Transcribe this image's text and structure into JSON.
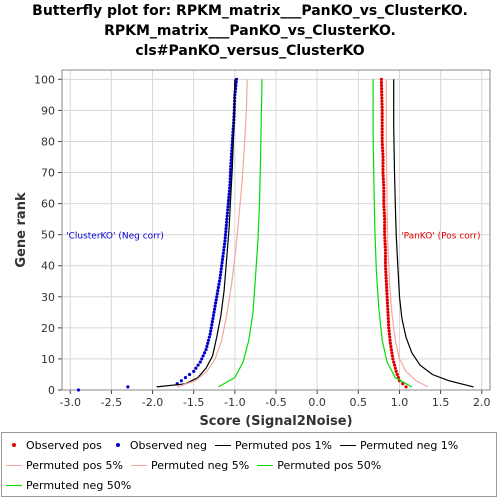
{
  "header": {
    "title_line1": "Butterfly plot for: RPKM_matrix___PanKO_vs_ClusterKO.",
    "title_line2": "RPKM_matrix___PanKO_vs_ClusterKO.",
    "title_line3": "cls#PanKO_versus_ClusterKO"
  },
  "chart_data": {
    "type": "line",
    "title": "Butterfly plot for: RPKM_matrix___PanKO_vs_ClusterKO. RPKM_matrix___PanKO_vs_ClusterKO. cls#PanKO_versus_ClusterKO",
    "xlabel": "Score (Signal2Noise)",
    "ylabel": "Gene rank",
    "xlim": [
      -3.1,
      2.1
    ],
    "ylim": [
      0,
      103
    ],
    "xticks": [
      "-3.0",
      "-2.5",
      "-2.0",
      "-1.5",
      "-1.0",
      "-0.5",
      "0.0",
      "0.5",
      "1.0",
      "1.5",
      "2.0"
    ],
    "yticks": [
      "0",
      "10",
      "20",
      "30",
      "40",
      "50",
      "60",
      "70",
      "80",
      "90",
      "100"
    ],
    "grid": true,
    "annotations": {
      "neg": "'ClusterKO' (Neg corr)",
      "pos": "'PanKO' (Pos corr)"
    },
    "colors": {
      "observed_pos": "#e00000",
      "observed_neg": "#0000cc",
      "perm_1": "#000000",
      "perm_5": "#f4a6a0",
      "perm_50": "#00dd00",
      "grid": "#d8d8d8"
    },
    "series": [
      {
        "name": "Observed pos",
        "style": "points",
        "x": [
          1.08,
          1.0,
          0.96,
          0.92,
          0.89,
          0.87,
          0.86,
          0.85,
          0.84,
          0.83,
          0.83,
          0.82,
          0.82,
          0.81,
          0.81,
          0.8,
          0.8,
          0.79,
          0.79,
          0.78
        ],
        "y": [
          1,
          3,
          6,
          10,
          15,
          20,
          25,
          30,
          35,
          40,
          45,
          50,
          55,
          60,
          65,
          70,
          75,
          80,
          90,
          100
        ]
      },
      {
        "name": "Observed neg",
        "style": "points",
        "x": [
          -2.9,
          -1.7,
          -1.6,
          -1.5,
          -1.42,
          -1.35,
          -1.3,
          -1.26,
          -1.22,
          -1.18,
          -1.15,
          -1.12,
          -1.1,
          -1.08,
          -1.06,
          -1.05,
          -1.03,
          -1.01,
          -1.0,
          -0.98
        ],
        "y": [
          0,
          2,
          4,
          6,
          9,
          13,
          18,
          24,
          30,
          36,
          42,
          48,
          54,
          60,
          66,
          72,
          80,
          88,
          95,
          100
        ]
      },
      {
        "name": "Permuted pos 1%",
        "style": "line",
        "x": [
          1.9,
          1.6,
          1.4,
          1.25,
          1.15,
          1.08,
          1.03,
          1.0,
          0.98,
          0.96,
          0.95,
          0.94,
          0.93,
          0.93
        ],
        "y": [
          1,
          3,
          5,
          8,
          12,
          17,
          23,
          30,
          40,
          50,
          60,
          70,
          85,
          100
        ]
      },
      {
        "name": "Permuted neg 1%",
        "style": "line",
        "x": [
          -1.95,
          -1.6,
          -1.45,
          -1.35,
          -1.27,
          -1.22,
          -1.17,
          -1.13,
          -1.1,
          -1.07,
          -1.05,
          -1.03,
          -1.01,
          -1.0
        ],
        "y": [
          1,
          2,
          4,
          7,
          11,
          17,
          24,
          32,
          42,
          52,
          62,
          72,
          86,
          100
        ]
      },
      {
        "name": "Permuted pos 5%",
        "style": "line",
        "x": [
          1.35,
          1.2,
          1.08,
          1.0,
          0.95,
          0.91,
          0.88,
          0.86,
          0.85,
          0.84,
          0.84
        ],
        "y": [
          1,
          3,
          6,
          10,
          16,
          24,
          34,
          46,
          60,
          78,
          100
        ]
      },
      {
        "name": "Permuted neg 5%",
        "style": "line",
        "x": [
          -1.7,
          -1.48,
          -1.34,
          -1.24,
          -1.16,
          -1.1,
          -1.04,
          -0.99,
          -0.95,
          -0.91,
          -0.88,
          -0.86,
          -0.85
        ],
        "y": [
          1,
          3,
          6,
          10,
          16,
          24,
          34,
          45,
          56,
          68,
          80,
          90,
          100
        ]
      },
      {
        "name": "Permuted pos 50%",
        "style": "line",
        "x": [
          1.15,
          0.95,
          0.85,
          0.79,
          0.75,
          0.72,
          0.7,
          0.69,
          0.68,
          0.68
        ],
        "y": [
          1,
          4,
          9,
          16,
          26,
          38,
          52,
          67,
          82,
          100
        ]
      },
      {
        "name": "Permuted neg 50%",
        "style": "line",
        "x": [
          -1.2,
          -1.0,
          -0.9,
          -0.83,
          -0.78,
          -0.75,
          -0.72,
          -0.7,
          -0.69,
          -0.68,
          -0.67
        ],
        "y": [
          1,
          4,
          9,
          16,
          25,
          36,
          48,
          60,
          72,
          86,
          100
        ]
      }
    ]
  },
  "legend": {
    "items": [
      {
        "label": "Observed pos",
        "kind": "dot",
        "color": "#e00000"
      },
      {
        "label": "Observed neg",
        "kind": "dot",
        "color": "#0000cc"
      },
      {
        "label": "Permuted pos 1%",
        "kind": "line",
        "color": "#000000"
      },
      {
        "label": "Permuted neg 1%",
        "kind": "line",
        "color": "#000000"
      },
      {
        "label": "Permuted pos 5%",
        "kind": "line",
        "color": "#f4a6a0"
      },
      {
        "label": "Permuted neg 5%",
        "kind": "line",
        "color": "#f4a6a0"
      },
      {
        "label": "Permuted pos 50%",
        "kind": "line",
        "color": "#00dd00"
      },
      {
        "label": "Permuted neg 50%",
        "kind": "line",
        "color": "#00dd00"
      }
    ]
  }
}
